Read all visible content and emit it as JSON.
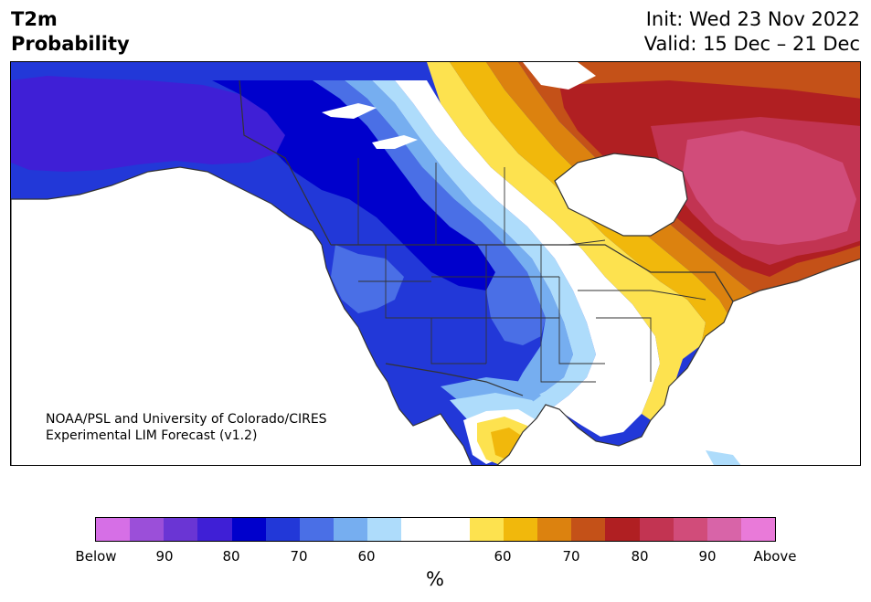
{
  "title": {
    "line1": "T2m",
    "line2": "Probability"
  },
  "init": {
    "line1": "Init: Wed 23 Nov 2022",
    "line2": "Valid: 15 Dec – 21 Dec"
  },
  "credit": {
    "line1": "NOAA/PSL and University of Colorado/CIRES",
    "line2": "Experimental LIM Forecast (v1.2)"
  },
  "colorbar": {
    "colors": [
      "#d66fe6",
      "#9b4fd9",
      "#6a35d4",
      "#3f1fd6",
      "#0000cc",
      "#2238d8",
      "#4a6fe6",
      "#76aef0",
      "#aedcfb",
      "#ffffff",
      "#ffffff",
      "#fde24f",
      "#f1b80c",
      "#dc820f",
      "#c45118",
      "#b01f22",
      "#c23452",
      "#d14c7a",
      "#d864a8",
      "#e97ad9"
    ],
    "ticks": [
      "Below",
      "90",
      "80",
      "70",
      "60",
      "60",
      "70",
      "80",
      "90",
      "Above"
    ],
    "unit": "%"
  },
  "map": {
    "ocean": "#ffffff",
    "land_colors": {
      "deep_cold": "#3f1fd6",
      "cold_80": "#0000cc",
      "cold_70": "#2238d8",
      "cold_65": "#4a6fe6",
      "cold_60": "#76aef0",
      "cold_55": "#aedcfb",
      "neutral": "#ffffff",
      "warm_55": "#fde24f",
      "warm_60": "#f1b80c",
      "warm_65": "#dc820f",
      "warm_70": "#c45118",
      "warm_80": "#b01f22",
      "warm_85": "#c23452",
      "warm_90": "#d14c7a"
    }
  }
}
